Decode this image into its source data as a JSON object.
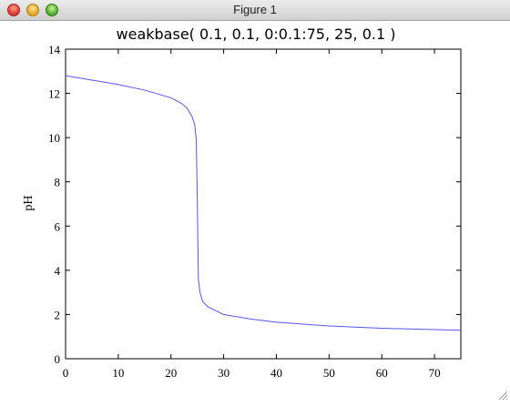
{
  "window": {
    "title": "Figure 1"
  },
  "chart_data": {
    "type": "line",
    "title": "weakbase( 0.1, 0.1, 0:0.1:75, 25, 0.1 )",
    "xlabel": "",
    "ylabel": "pH",
    "xlim": [
      0,
      75
    ],
    "ylim": [
      0,
      14
    ],
    "xticks": [
      0,
      10,
      20,
      30,
      40,
      50,
      60,
      70
    ],
    "yticks": [
      0,
      2,
      4,
      6,
      8,
      10,
      12,
      14
    ],
    "grid": false,
    "line_color": "#5555ee",
    "x": [
      0,
      5,
      10,
      15,
      20,
      22,
      23,
      24,
      24.5,
      24.8,
      25,
      25.2,
      25.5,
      26,
      27,
      30,
      35,
      40,
      50,
      60,
      70,
      75
    ],
    "values": [
      12.8,
      12.6,
      12.4,
      12.15,
      11.8,
      11.55,
      11.35,
      10.95,
      10.6,
      9.9,
      7.1,
      3.6,
      3.0,
      2.6,
      2.35,
      2.0,
      1.8,
      1.65,
      1.48,
      1.38,
      1.32,
      1.29
    ]
  }
}
